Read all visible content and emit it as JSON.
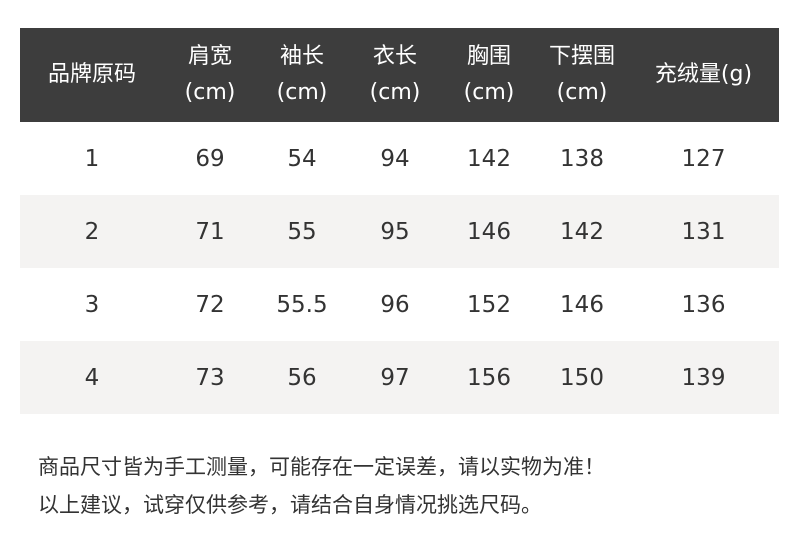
{
  "headers": [
    {
      "l1": "品牌原码",
      "l2": ""
    },
    {
      "l1": "肩宽",
      "l2": "(cm)"
    },
    {
      "l1": "袖长",
      "l2": "(cm)"
    },
    {
      "l1": "衣长",
      "l2": "(cm)"
    },
    {
      "l1": "胸围",
      "l2": "(cm)"
    },
    {
      "l1": "下摆围",
      "l2": "(cm)"
    },
    {
      "l1": "充绒量(g)",
      "l2": ""
    }
  ],
  "rows": [
    [
      "1",
      "69",
      "54",
      "94",
      "142",
      "138",
      "127"
    ],
    [
      "2",
      "71",
      "55",
      "95",
      "146",
      "142",
      "131"
    ],
    [
      "3",
      "72",
      "55.5",
      "96",
      "152",
      "146",
      "136"
    ],
    [
      "4",
      "73",
      "56",
      "97",
      "156",
      "150",
      "139"
    ]
  ],
  "notes": [
    "商品尺寸皆为手工测量，可能存在一定误差，请以实物为准！",
    "以上建议，试穿仅供参考，请结合自身情况挑选尺码。"
  ],
  "colors": {
    "header_bg": "#3d3d3d",
    "alt_row": "#f4f3f2"
  }
}
